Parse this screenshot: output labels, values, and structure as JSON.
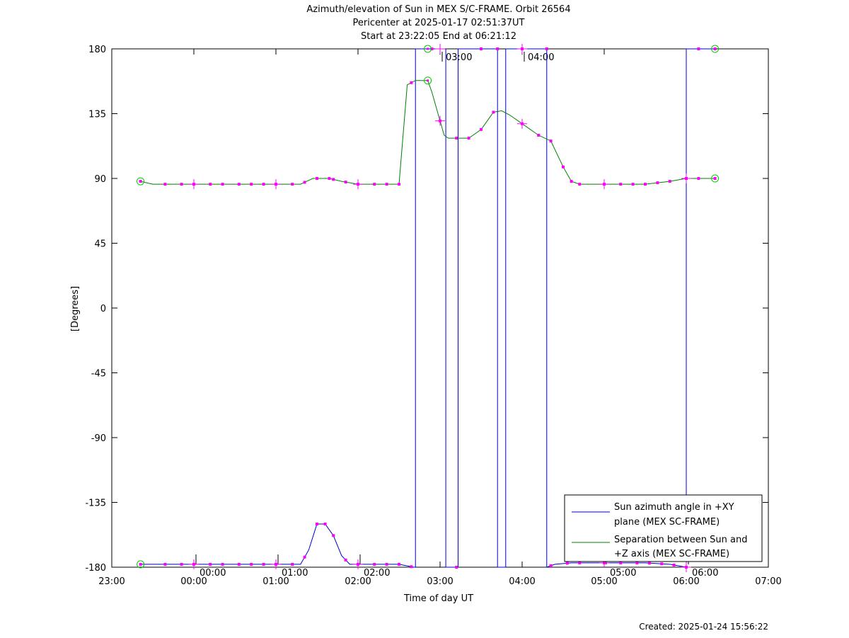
{
  "chart_data": {
    "type": "line",
    "title": "Azimuth/elevation of Sun in MEX S/C-FRAME.  Orbit 26564",
    "subtitle_1": "Pericenter at 2025-01-17 02:51:37UT",
    "subtitle_2": "Start at 23:22:05 End at 06:21:12",
    "xlabel": "Time of day UT",
    "ylabel": "[Degrees]",
    "xlim": [
      23.0,
      31.0
    ],
    "ylim": [
      -180,
      180
    ],
    "y_ticks": [
      180,
      135,
      90,
      45,
      0,
      -45,
      -90,
      -135,
      -180
    ],
    "y_tick_labels": [
      "180",
      "135",
      "90",
      "45",
      "0",
      "-45",
      "-90",
      "-135",
      "-180"
    ],
    "x_ticks": [
      23,
      24,
      25,
      26,
      27,
      28,
      29,
      30,
      31
    ],
    "x_tick_labels": [
      "23:00",
      "00:00",
      "01:00",
      "02:00",
      "03:00",
      "04:00",
      "05:00",
      "06:00",
      "07:00"
    ],
    "inner_time_labels": [
      {
        "label": "00:00",
        "x": 24.0,
        "side": "bottom"
      },
      {
        "label": "01:00",
        "x": 25.0,
        "side": "bottom"
      },
      {
        "label": "02:00",
        "x": 26.0,
        "side": "bottom"
      },
      {
        "label": "03:00",
        "x": 27.0,
        "side": "top"
      },
      {
        "label": "04:00",
        "x": 28.0,
        "side": "top"
      },
      {
        "label": "05:00",
        "x": 29.0,
        "side": "bottom"
      },
      {
        "label": "06:00",
        "x": 30.0,
        "side": "bottom"
      }
    ],
    "grid": false,
    "legend_position": "bottom-right",
    "legend": [
      {
        "label_line1": "Sun azimuth angle in +XY",
        "label_line2": "plane (MEX SC-FRAME)",
        "color": "#0000cc"
      },
      {
        "label_line1": "Separation between Sun and",
        "label_line2": "+Z axis (MEX SC-FRAME)",
        "color": "#008000"
      }
    ],
    "series": [
      {
        "color": "#0000cc",
        "x": [
          23.35,
          23.6,
          24.0,
          24.5,
          25.0,
          25.3,
          25.4,
          25.5,
          25.6,
          25.7,
          25.8,
          25.9,
          26.0,
          26.5,
          26.68,
          26.7,
          26.7,
          26.7,
          26.85,
          26.85,
          27.07,
          27.07,
          27.07,
          27.2,
          27.22,
          27.22,
          27.22,
          27.7,
          27.7,
          27.7,
          27.8,
          27.8,
          27.8,
          28.3,
          28.3,
          28.3,
          28.4,
          28.6,
          29.0,
          29.5,
          29.8,
          30.0,
          30.0,
          30.0,
          30.35
        ],
        "y": [
          -178,
          -178,
          -178,
          -178,
          -178,
          -178,
          -168,
          -150,
          -150,
          -158,
          -172,
          -178,
          -178,
          -178,
          -180,
          -180,
          180,
          180,
          180,
          180,
          180,
          -180,
          -180,
          -180,
          -180,
          180,
          180,
          180,
          -180,
          -180,
          -180,
          180,
          180,
          180,
          -180,
          -180,
          -178,
          -177,
          -177,
          -177,
          -178,
          -180,
          180,
          180,
          180
        ]
      },
      {
        "color": "#008000",
        "x": [
          23.35,
          23.5,
          24.0,
          24.5,
          25.0,
          25.3,
          25.45,
          25.65,
          25.8,
          26.0,
          26.5,
          26.6,
          26.7,
          26.85,
          26.9,
          27.0,
          27.05,
          27.1,
          27.2,
          27.35,
          27.5,
          27.65,
          27.75,
          27.85,
          28.0,
          28.2,
          28.35,
          28.5,
          28.6,
          28.7,
          29.0,
          29.5,
          29.8,
          30.0,
          30.35
        ],
        "y": [
          88,
          86,
          86,
          86,
          86,
          86,
          90,
          90,
          88,
          86,
          86,
          155,
          158,
          158,
          150,
          130,
          120,
          118,
          118,
          118,
          124,
          136,
          137,
          134,
          128,
          120,
          116,
          98,
          88,
          86,
          86,
          86,
          88,
          90,
          90
        ]
      }
    ],
    "markers": {
      "color": "#ff00ff",
      "series_0_x": [
        23.35,
        23.65,
        23.85,
        24.0,
        24.2,
        24.35,
        24.55,
        24.7,
        24.85,
        25.0,
        25.2,
        25.35,
        25.5,
        25.6,
        25.7,
        25.85,
        26.0,
        26.2,
        26.35,
        26.5,
        26.65,
        26.9,
        27.2,
        27.5,
        27.7,
        28.0,
        28.3,
        28.35,
        28.55,
        28.7,
        29.0,
        29.2,
        29.4,
        29.55,
        29.7,
        29.85,
        30.0,
        30.15,
        30.35
      ],
      "series_1_x": [
        23.35,
        23.65,
        23.85,
        24.0,
        24.2,
        24.35,
        24.55,
        24.7,
        24.85,
        25.0,
        25.2,
        25.35,
        25.5,
        25.65,
        25.7,
        25.85,
        26.0,
        26.2,
        26.35,
        26.5,
        26.65,
        27.0,
        27.2,
        27.35,
        27.5,
        27.65,
        28.0,
        28.2,
        28.35,
        28.5,
        28.6,
        28.7,
        29.0,
        29.2,
        29.35,
        29.5,
        29.65,
        29.8,
        30.0,
        30.15,
        30.35
      ]
    },
    "start_end_circles": {
      "color": "#00cc00",
      "points": [
        {
          "x": 23.35,
          "y": 88
        },
        {
          "x": 23.35,
          "y": -178
        },
        {
          "x": 26.85,
          "y": 180
        },
        {
          "x": 26.85,
          "y": 158
        },
        {
          "x": 30.35,
          "y": 180
        },
        {
          "x": 30.35,
          "y": 90
        }
      ]
    }
  },
  "footer": {
    "created": "Created: 2025-01-24 15:56:22"
  }
}
